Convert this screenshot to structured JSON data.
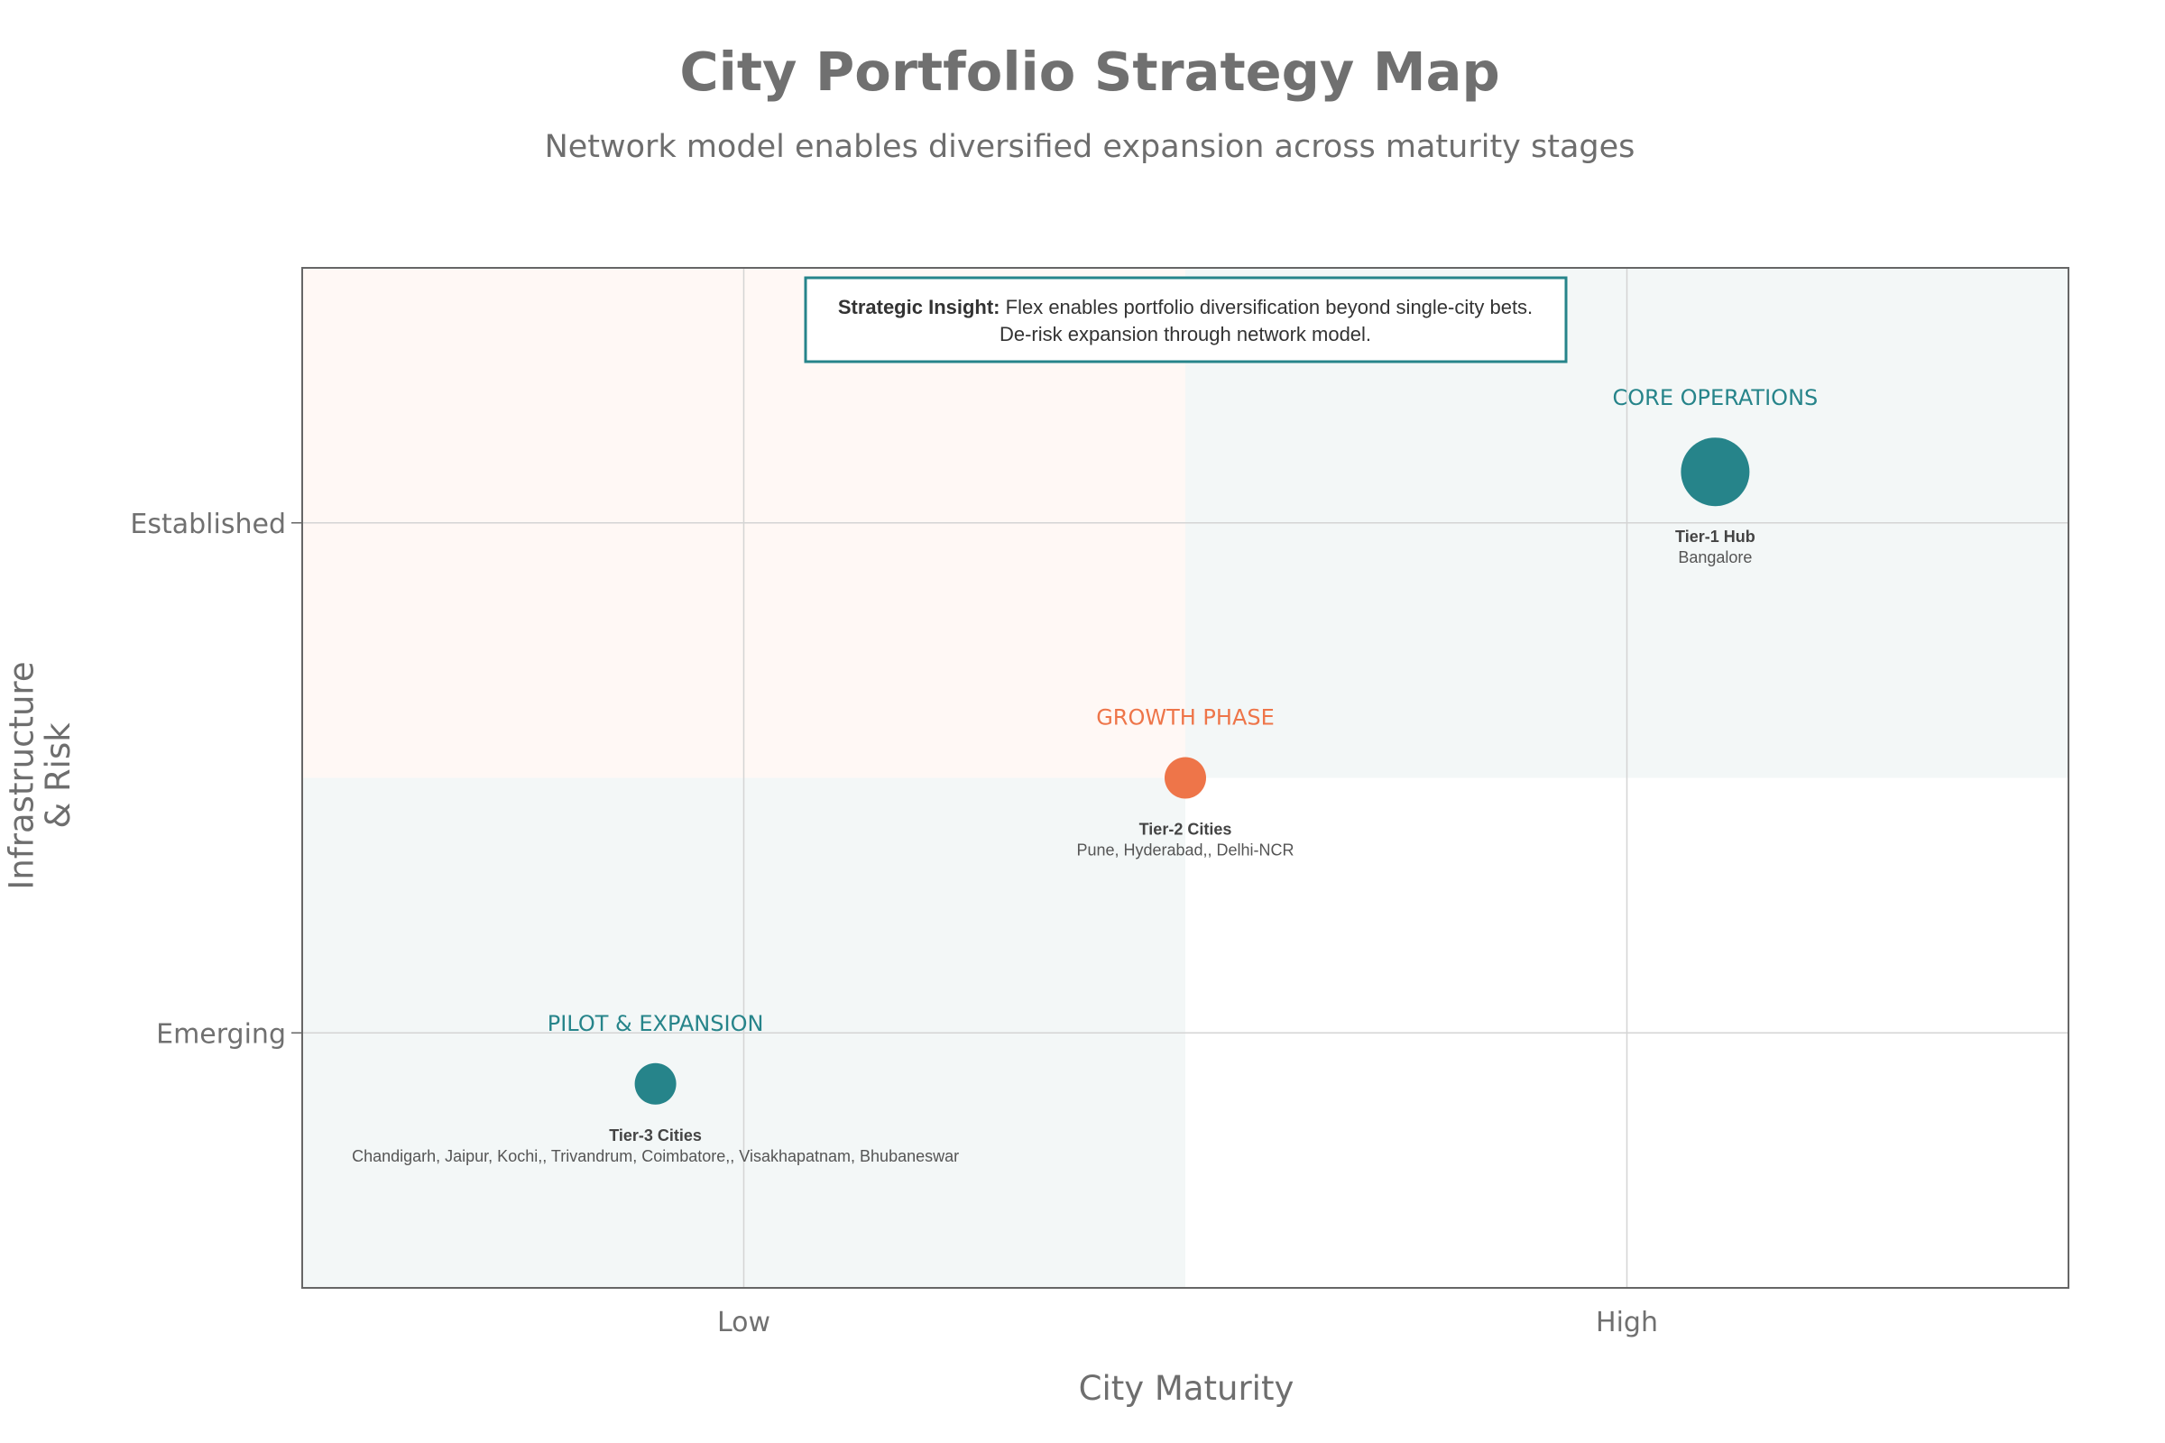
{
  "colors": {
    "teal": "#26848A",
    "orange": "#EE7549",
    "teal_bg": "#F3F7F7",
    "orange_bg": "#FFF8F5",
    "grid": "#D4D4D4",
    "frame": "#666666"
  },
  "chart_data": {
    "type": "scatter",
    "title": "City Portfolio Strategy Map",
    "subtitle": "Network model enables diversified expansion across maturity stages",
    "xlabel": "City Maturity",
    "ylabel": "Infrastructure & Risk",
    "xlim": [
      0.5,
      2.5
    ],
    "ylim": [
      0.5,
      2.5
    ],
    "x_ticks": [
      {
        "value": 1,
        "label": "Low"
      },
      {
        "value": 2,
        "label": "High"
      }
    ],
    "y_ticks": [
      {
        "value": 1,
        "label": "Emerging"
      },
      {
        "value": 2,
        "label": "Established"
      }
    ],
    "grid": true,
    "quadrant_split": {
      "x": 1.5,
      "y": 1.5
    },
    "points": [
      {
        "x": 0.9,
        "y": 0.9,
        "size": "small",
        "color": "teal",
        "phase": "PILOT & EXPANSION",
        "tier": "Tier-3 Cities",
        "cities": "Chandigarh, Jaipur, Kochi,, Trivandrum, Coimbatore,, Visakhapatnam, Bhubaneswar"
      },
      {
        "x": 1.5,
        "y": 1.5,
        "size": "small",
        "color": "orange",
        "phase": "GROWTH PHASE",
        "tier": "Tier-2 Cities",
        "cities": "Pune, Hyderabad,, Delhi-NCR"
      },
      {
        "x": 2.1,
        "y": 2.1,
        "size": "large",
        "color": "teal",
        "phase": "CORE OPERATIONS",
        "tier": "Tier-1 Hub",
        "cities": "Bangalore"
      }
    ],
    "annotation": {
      "bold": "Strategic Insight:",
      "line1": "Flex enables portfolio diversification beyond single-city bets.",
      "line2": "De-risk expansion through network model."
    }
  }
}
